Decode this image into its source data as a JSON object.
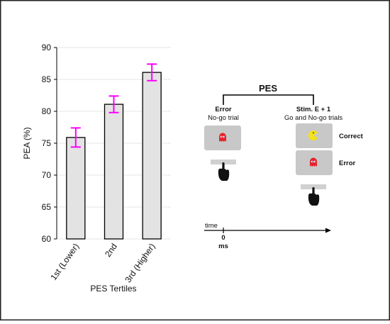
{
  "colors": {
    "bar_fill": "#e3e3e3",
    "bar_stroke": "#000000",
    "error_bar": "#ff00ff",
    "grid": "#e6e6e6",
    "screen_fill": "#c8c8c8",
    "ghost": "#e8202a",
    "pacman": "#f3e21a",
    "border": "#222222"
  },
  "chart_data": {
    "type": "bar",
    "categories": [
      "1st (Lower)",
      "2nd",
      "3rd (Higher)"
    ],
    "values": [
      75.9,
      81.1,
      86.1
    ],
    "error": [
      1.5,
      1.3,
      1.3
    ],
    "ylim": [
      60,
      90
    ],
    "yticks": [
      60,
      65,
      70,
      75,
      80,
      85,
      90
    ],
    "ylabel": "PEA (%)",
    "xlabel": "PES Tertiles",
    "grid": true,
    "legend": "none"
  },
  "schematic": {
    "title": "PES",
    "left": {
      "heading": "Error",
      "subheading": "No-go trial",
      "screen_icon": "ghost-icon",
      "response_icon": "pointing-hand-icon"
    },
    "right": {
      "heading": "Stim. E + 1",
      "subheading": "Go and No-go trials",
      "correct_label": "Correct",
      "correct_icon": "pacman-icon",
      "error_label": "Error",
      "error_icon": "ghost-icon",
      "response_icon": "pointing-hand-icon"
    },
    "timeline": {
      "label": "time",
      "zero": "0",
      "unit": "ms"
    }
  }
}
